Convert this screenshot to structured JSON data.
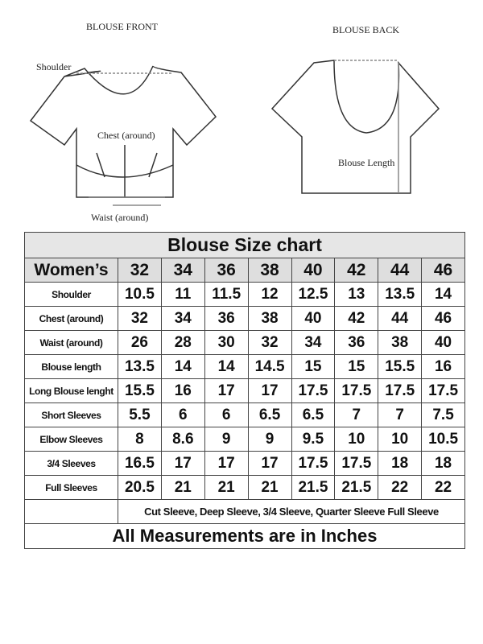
{
  "diagram": {
    "front_title": "BLOUSE FRONT",
    "back_title": "BLOUSE BACK",
    "shoulder_label": "Shoulder",
    "chest_label": "Chest (around)",
    "waist_label": "Waist (around)",
    "length_label": "Blouse Length"
  },
  "table": {
    "title": "Blouse Size chart",
    "header_label": "Women’s",
    "sizes": [
      "32",
      "34",
      "36",
      "38",
      "40",
      "42",
      "44",
      "46"
    ],
    "rows": [
      {
        "label": "Shoulder",
        "values": [
          "10.5",
          "11",
          "11.5",
          "12",
          "12.5",
          "13",
          "13.5",
          "14"
        ]
      },
      {
        "label": "Chest (around)",
        "values": [
          "32",
          "34",
          "36",
          "38",
          "40",
          "42",
          "44",
          "46"
        ]
      },
      {
        "label": "Waist (around)",
        "values": [
          "26",
          "28",
          "30",
          "32",
          "34",
          "36",
          "38",
          "40"
        ]
      },
      {
        "label": "Blouse length",
        "values": [
          "13.5",
          "14",
          "14",
          "14.5",
          "15",
          "15",
          "15.5",
          "16"
        ]
      },
      {
        "label": "Long Blouse lenght",
        "values": [
          "15.5",
          "16",
          "17",
          "17",
          "17.5",
          "17.5",
          "17.5",
          "17.5"
        ]
      },
      {
        "label": "Short Sleeves",
        "values": [
          "5.5",
          "6",
          "6",
          "6.5",
          "6.5",
          "7",
          "7",
          "7.5"
        ]
      },
      {
        "label": "Elbow Sleeves",
        "values": [
          "8",
          "8.6",
          "9",
          "9",
          "9.5",
          "10",
          "10",
          "10.5"
        ]
      },
      {
        "label": "3/4 Sleeves",
        "values": [
          "16.5",
          "17",
          "17",
          "17",
          "17.5",
          "17.5",
          "18",
          "18"
        ]
      },
      {
        "label": "Full Sleeves",
        "values": [
          "20.5",
          "21",
          "21",
          "21",
          "21.5",
          "21.5",
          "22",
          "22"
        ]
      }
    ],
    "sleeve_note": "Cut Sleeve, Deep Sleeve, 3/4 Sleeve, Quarter Sleeve Full Sleeve",
    "footer": "All Measurements are in Inches"
  }
}
